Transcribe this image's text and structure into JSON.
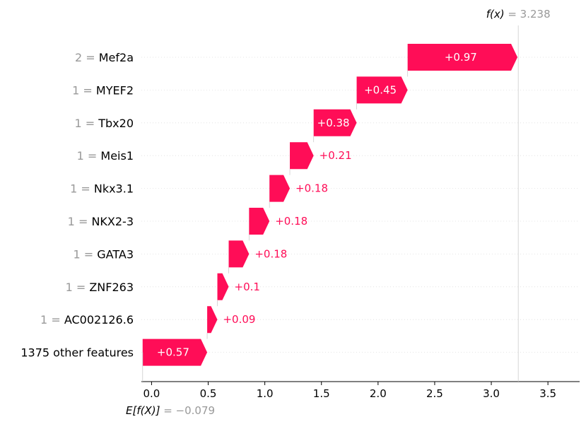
{
  "chart_data": {
    "type": "waterfall",
    "features": [
      {
        "value_label": "2",
        "name": "Mef2a",
        "contribution": 0.97,
        "label": "+0.97"
      },
      {
        "value_label": "1",
        "name": "MYEF2",
        "contribution": 0.45,
        "label": "+0.45"
      },
      {
        "value_label": "1",
        "name": "Tbx20",
        "contribution": 0.38,
        "label": "+0.38"
      },
      {
        "value_label": "1",
        "name": "Meis1",
        "contribution": 0.21,
        "label": "+0.21"
      },
      {
        "value_label": "1",
        "name": "Nkx3.1",
        "contribution": 0.18,
        "label": "+0.18"
      },
      {
        "value_label": "1",
        "name": "NKX2-3",
        "contribution": 0.18,
        "label": "+0.18"
      },
      {
        "value_label": "1",
        "name": "GATA3",
        "contribution": 0.18,
        "label": "+0.18"
      },
      {
        "value_label": "1",
        "name": "ZNF263",
        "contribution": 0.1,
        "label": "+0.1"
      },
      {
        "value_label": "1",
        "name": "AC002126.6",
        "contribution": 0.09,
        "label": "+0.09"
      },
      {
        "value_label": "",
        "name": "1375 other features",
        "contribution": 0.57,
        "label": "+0.57"
      }
    ],
    "base_value": -0.079,
    "output_value": 3.238,
    "fx_label": "f(x)",
    "fx_value_text": "= 3.238",
    "ex_label": "E[f(X)]",
    "ex_value_text": "= −0.079",
    "xticks": [
      0.0,
      0.5,
      1.0,
      1.5,
      2.0,
      2.5,
      3.0,
      3.5
    ],
    "xtick_labels": [
      "0.0",
      "0.5",
      "1.0",
      "1.5",
      "2.0",
      "2.5",
      "3.0",
      "3.5"
    ],
    "xlim": [
      -0.09,
      3.78
    ],
    "colors": {
      "positive": "#ff0d57",
      "gray": "#999999",
      "text": "#000000"
    }
  }
}
